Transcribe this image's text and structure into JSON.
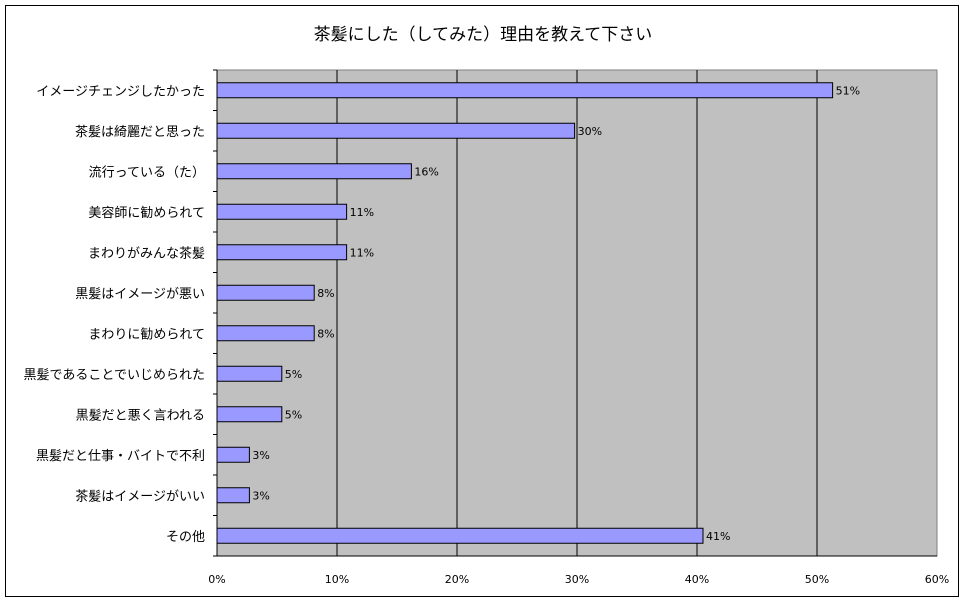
{
  "chart_data": {
    "type": "bar",
    "orientation": "horizontal",
    "title": "茶髪にした（してみた）理由を教えて下さい",
    "xlabel": "",
    "ylabel": "",
    "categories": [
      "イメージチェンジしたかった",
      "茶髪は綺麗だと思った",
      "流行っている（た）",
      "美容師に勧められて",
      "まわりがみんな茶髪",
      "黒髪はイメージが悪い",
      "まわりに勧められて",
      "黒髪であることでいじめられた",
      "黒髪だと悪く言われる",
      "黒髪だと仕事・バイトで不利",
      "茶髪はイメージがいい",
      "その他"
    ],
    "values": [
      51.3,
      29.8,
      16.2,
      10.8,
      10.8,
      8.1,
      8.1,
      5.4,
      5.4,
      2.7,
      2.7,
      40.5
    ],
    "data_labels": [
      "51%",
      "30%",
      "16%",
      "11%",
      "11%",
      "8%",
      "8%",
      "5%",
      "5%",
      "3%",
      "3%",
      "41%"
    ],
    "xlim": [
      0,
      60
    ],
    "xticks": [
      0,
      10,
      20,
      30,
      40,
      50,
      60
    ],
    "xtick_labels": [
      "0%",
      "10%",
      "20%",
      "30%",
      "40%",
      "50%",
      "60%"
    ],
    "grid": true,
    "legend": "none",
    "colors": {
      "bar": "#9999ff",
      "plot_bg": "#c0c0c0",
      "border": "#000000"
    }
  }
}
